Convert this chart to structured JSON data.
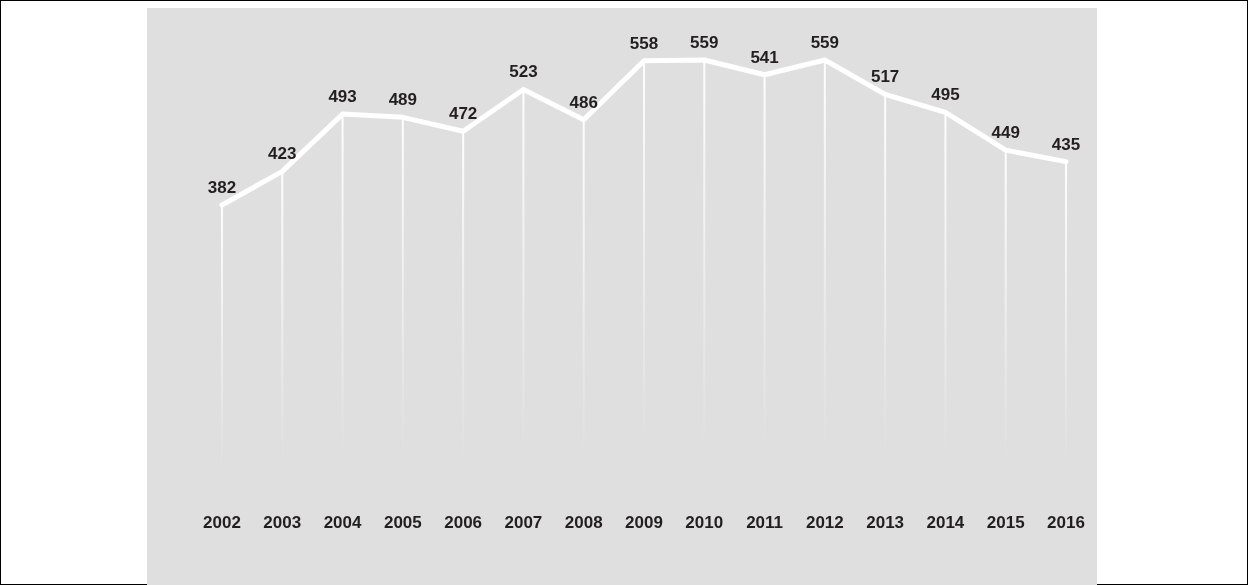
{
  "chart_data": {
    "type": "line",
    "categories": [
      "2002",
      "2003",
      "2004",
      "2005",
      "2006",
      "2007",
      "2008",
      "2009",
      "2010",
      "2011",
      "2012",
      "2013",
      "2014",
      "2015",
      "2016"
    ],
    "series": [
      {
        "type": "bar",
        "color": "#ffffff",
        "values": [
          382,
          423,
          493,
          489,
          472,
          523,
          486,
          558,
          559,
          541,
          559,
          517,
          495,
          449,
          435
        ]
      },
      {
        "color": "#ffffff",
        "values": [
          382,
          423,
          493,
          489,
          472,
          523,
          486,
          558,
          559,
          541,
          559,
          517,
          495,
          449,
          435
        ],
        "value_labels": [
          "382",
          "423",
          "493",
          "489",
          "472",
          "523",
          "486",
          "558",
          "559",
          "541",
          "559",
          "517",
          "495",
          "449",
          "435"
        ]
      }
    ],
    "marker": "none",
    "line_style": "solid"
  }
}
